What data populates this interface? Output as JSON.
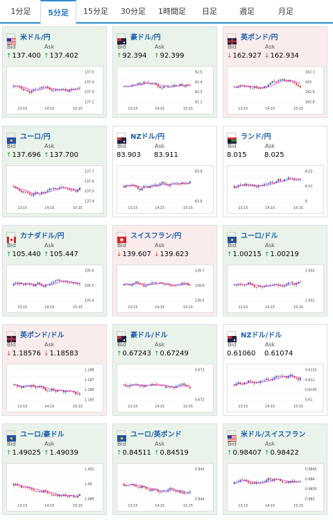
{
  "tabs": [
    "1分足",
    "5分足",
    "15分足",
    "30分足",
    "1時間足",
    "日足",
    "週足",
    "月足"
  ],
  "active_tab": 1,
  "bid_label": "Bid",
  "ask_label": "Ask",
  "cards": [
    {
      "name": "米ドル/円",
      "dir": "up",
      "bid": "137.400",
      "ask": "137.402",
      "flag": "us",
      "y_ticks": [
        "137.5",
        "137.4",
        "137.3",
        "137.2"
      ],
      "x_ticks": [
        "13:15",
        "14:15",
        "15:15"
      ]
    },
    {
      "name": "豪ドル/円",
      "dir": "up",
      "bid": "92.394",
      "ask": "92.399",
      "flag": "au",
      "y_ticks": [
        "92.5",
        "92.4",
        "92.3",
        "92.2"
      ],
      "x_ticks": [
        "13:15",
        "14:15",
        "15:15"
      ]
    },
    {
      "name": "英ポンド/円",
      "dir": "down",
      "bid": "162.927",
      "ask": "162.934",
      "flag": "gb",
      "y_ticks": [
        "163.1",
        "163",
        "162.9",
        "162.8"
      ],
      "x_ticks": [
        "13:15",
        "14:15",
        "15:15"
      ]
    },
    {
      "name": "ユーロ/円",
      "dir": "up",
      "bid": "137.696",
      "ask": "137.700",
      "flag": "eu",
      "y_ticks": [
        "137.7",
        "137.6",
        "137.5",
        "137.4"
      ],
      "x_ticks": [
        "13:15",
        "14:15",
        "15:15"
      ]
    },
    {
      "name": "NZドル/円",
      "dir": "flat",
      "bid": "83.903",
      "ask": "83.911",
      "flag": "nz",
      "y_ticks": [
        "83.9",
        "83.8"
      ],
      "x_ticks": [
        "13:15",
        "14:15",
        "15:15"
      ]
    },
    {
      "name": "ランド/円",
      "dir": "flat",
      "bid": "8.015",
      "ask": "8.025",
      "flag": "za",
      "y_ticks": [
        "8.02",
        "8.01",
        "8"
      ],
      "x_ticks": [
        "13:15",
        "14:15",
        "15:15"
      ]
    },
    {
      "name": "カナダドル/円",
      "dir": "up",
      "bid": "105.440",
      "ask": "105.447",
      "flag": "ca",
      "y_ticks": [
        "105.6",
        "105.5",
        "105.4"
      ],
      "x_ticks": [
        "13:15",
        "14:15",
        "15:15"
      ]
    },
    {
      "name": "スイスフラン/円",
      "dir": "down",
      "bid": "139.607",
      "ask": "139.623",
      "flag": "ch",
      "y_ticks": [
        "139.7",
        "139.6",
        "139.5"
      ],
      "x_ticks": [
        "13:15",
        "14:15",
        "15:15"
      ]
    },
    {
      "name": "ユーロ/ドル",
      "dir": "up",
      "bid": "1.00215",
      "ask": "1.00219",
      "flag": "eu",
      "y_ticks": [
        "1.002",
        "1.001"
      ],
      "x_ticks": [
        "13:15",
        "14:15",
        "15:15"
      ]
    },
    {
      "name": "英ポンド/ドル",
      "dir": "down",
      "bid": "1.18576",
      "ask": "1.18583",
      "flag": "gb",
      "y_ticks": [
        "1.188",
        "1.187",
        "1.186",
        "1.185"
      ],
      "x_ticks": [
        "13:15",
        "14:15",
        "15:15"
      ]
    },
    {
      "name": "豪ドル/ドル",
      "dir": "up",
      "bid": "0.67243",
      "ask": "0.67249",
      "flag": "au",
      "y_ticks": [
        "0.673",
        "0.672"
      ],
      "x_ticks": [
        "13:15",
        "14:15",
        "15:15"
      ]
    },
    {
      "name": "NZドル/ドル",
      "dir": "flat",
      "bid": "0.61060",
      "ask": "0.61074",
      "flag": "nz",
      "y_ticks": [
        "0.6115",
        "0.611",
        "0.6105",
        "0.61"
      ],
      "x_ticks": [
        "13:15",
        "14:15",
        "15:15"
      ]
    },
    {
      "name": "ユーロ/豪ドル",
      "dir": "up",
      "bid": "1.49025",
      "ask": "1.49039",
      "flag": "eu",
      "y_ticks": [
        "1.491",
        "1.49",
        "1.489"
      ],
      "x_ticks": [
        "13:15",
        "14:15",
        "15:15"
      ]
    },
    {
      "name": "ユーロ/英ポンド",
      "dir": "up",
      "bid": "0.84511",
      "ask": "0.84519",
      "flag": "eu",
      "y_ticks": [
        "0.845",
        "0.844"
      ],
      "x_ticks": [
        "13:15",
        "14:15",
        "15:15"
      ]
    },
    {
      "name": "米ドル/スイスフラン",
      "dir": "up",
      "bid": "0.98407",
      "ask": "0.98422",
      "flag": "us",
      "y_ticks": [
        "0.9845",
        "0.984",
        "0.9835",
        "0.983"
      ],
      "x_ticks": [
        "13:15",
        "14:15",
        "15:15"
      ]
    }
  ],
  "colors": {
    "up": "#1a9a3a",
    "down": "#d33333",
    "accent": "#2a8bcf",
    "ma": "#d040d0",
    "candle_up": "#2255cc",
    "candle_down": "#dd2222"
  }
}
